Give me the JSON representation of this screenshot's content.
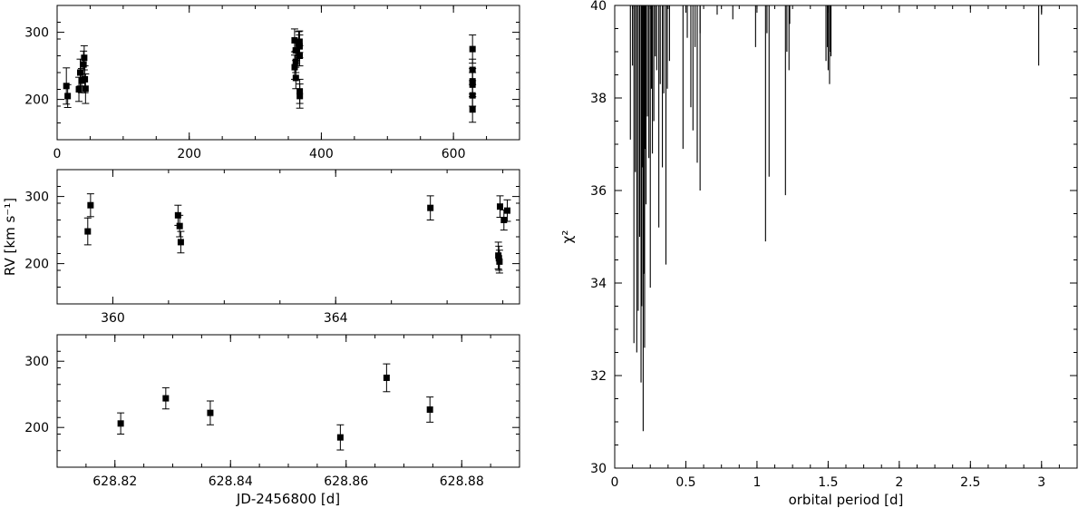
{
  "chart_data": [
    {
      "id": "rv-all",
      "type": "scatter",
      "xlabel": "",
      "ylabel": "",
      "xlim": [
        0,
        700
      ],
      "ylim": [
        140,
        340
      ],
      "xticks": [
        0,
        200,
        400,
        600
      ],
      "yticks": [
        200,
        300
      ],
      "points": [
        {
          "x": 14,
          "y": 220,
          "err": 27
        },
        {
          "x": 16,
          "y": 205,
          "err": 17
        },
        {
          "x": 33,
          "y": 215,
          "err": 18
        },
        {
          "x": 35,
          "y": 240,
          "err": 20
        },
        {
          "x": 37,
          "y": 228,
          "err": 18
        },
        {
          "x": 40,
          "y": 252,
          "err": 20
        },
        {
          "x": 41,
          "y": 262,
          "err": 18
        },
        {
          "x": 42,
          "y": 230,
          "err": 20
        },
        {
          "x": 43,
          "y": 216,
          "err": 22
        },
        {
          "x": 359.5,
          "y": 288,
          "err": 17
        },
        {
          "x": 359.6,
          "y": 248,
          "err": 18
        },
        {
          "x": 361.2,
          "y": 273,
          "err": 15
        },
        {
          "x": 361.3,
          "y": 256,
          "err": 16
        },
        {
          "x": 361.4,
          "y": 232,
          "err": 16
        },
        {
          "x": 365.8,
          "y": 283,
          "err": 18
        },
        {
          "x": 367.0,
          "y": 286,
          "err": 16
        },
        {
          "x": 367.1,
          "y": 279,
          "err": 17
        },
        {
          "x": 367.2,
          "y": 265,
          "err": 15
        },
        {
          "x": 367.3,
          "y": 212,
          "err": 18
        },
        {
          "x": 367.4,
          "y": 205,
          "err": 18
        },
        {
          "x": 628.82,
          "y": 206,
          "err": 16
        },
        {
          "x": 628.83,
          "y": 244,
          "err": 16
        },
        {
          "x": 628.84,
          "y": 222,
          "err": 18
        },
        {
          "x": 628.86,
          "y": 185,
          "err": 19
        },
        {
          "x": 628.87,
          "y": 275,
          "err": 21
        },
        {
          "x": 628.875,
          "y": 227,
          "err": 19
        }
      ]
    },
    {
      "id": "rv-zoom-360",
      "type": "scatter",
      "xlabel": "",
      "ylabel": "RV [km s⁻¹]",
      "xlim": [
        359.0,
        367.3
      ],
      "ylim": [
        140,
        340
      ],
      "xticks": [
        360,
        364
      ],
      "yticks": [
        200,
        300
      ],
      "points": [
        {
          "x": 359.55,
          "y": 248,
          "err": 20
        },
        {
          "x": 359.6,
          "y": 287,
          "err": 17
        },
        {
          "x": 361.17,
          "y": 272,
          "err": 15
        },
        {
          "x": 361.2,
          "y": 256,
          "err": 16
        },
        {
          "x": 361.22,
          "y": 232,
          "err": 16
        },
        {
          "x": 365.7,
          "y": 283,
          "err": 18
        },
        {
          "x": 366.95,
          "y": 285,
          "err": 16
        },
        {
          "x": 367.02,
          "y": 265,
          "err": 15
        },
        {
          "x": 367.08,
          "y": 279,
          "err": 16
        },
        {
          "x": 366.92,
          "y": 212,
          "err": 20
        },
        {
          "x": 366.93,
          "y": 208,
          "err": 18
        },
        {
          "x": 366.94,
          "y": 203,
          "err": 17
        }
      ]
    },
    {
      "id": "rv-zoom-628",
      "type": "scatter",
      "xlabel": "JD-2456800 [d]",
      "ylabel": "",
      "xlim": [
        628.81,
        628.89
      ],
      "ylim": [
        140,
        340
      ],
      "xticks": [
        628.82,
        628.84,
        628.86,
        628.88
      ],
      "yticks": [
        200,
        300
      ],
      "points": [
        {
          "x": 628.821,
          "y": 206,
          "err": 16
        },
        {
          "x": 628.8288,
          "y": 244,
          "err": 16
        },
        {
          "x": 628.8365,
          "y": 222,
          "err": 18
        },
        {
          "x": 628.859,
          "y": 185,
          "err": 19
        },
        {
          "x": 628.867,
          "y": 275,
          "err": 21
        },
        {
          "x": 628.8745,
          "y": 227,
          "err": 19
        }
      ]
    },
    {
      "id": "periodogram",
      "type": "line",
      "xlabel": "orbital period [d]",
      "ylabel": "χ²",
      "xlim": [
        0,
        3.25
      ],
      "ylim": [
        30,
        40
      ],
      "xticks": [
        0,
        0.5,
        1,
        1.5,
        2,
        2.5,
        3
      ],
      "xticklabels": [
        "0",
        "0.5",
        "1",
        "1.5",
        "2",
        "2.5",
        "3"
      ],
      "yticks": [
        30,
        32,
        34,
        36,
        38,
        40
      ],
      "dips": [
        [
          0.11,
          37.1
        ],
        [
          0.125,
          38.7
        ],
        [
          0.135,
          32.7
        ],
        [
          0.145,
          36.4
        ],
        [
          0.155,
          32.5
        ],
        [
          0.165,
          33.4
        ],
        [
          0.175,
          35.0
        ],
        [
          0.185,
          31.85
        ],
        [
          0.19,
          33.5
        ],
        [
          0.195,
          36.5
        ],
        [
          0.2,
          30.8
        ],
        [
          0.205,
          34.2
        ],
        [
          0.21,
          32.6
        ],
        [
          0.215,
          36.9
        ],
        [
          0.22,
          35.7
        ],
        [
          0.23,
          37.6
        ],
        [
          0.24,
          36.7
        ],
        [
          0.25,
          33.9
        ],
        [
          0.258,
          38.2
        ],
        [
          0.265,
          36.8
        ],
        [
          0.275,
          37.5
        ],
        [
          0.285,
          38.9
        ],
        [
          0.295,
          38.6
        ],
        [
          0.31,
          35.2
        ],
        [
          0.32,
          38.3
        ],
        [
          0.335,
          36.5
        ],
        [
          0.345,
          38.1
        ],
        [
          0.36,
          34.4
        ],
        [
          0.37,
          38.2
        ],
        [
          0.385,
          38.8
        ],
        [
          0.48,
          36.9
        ],
        [
          0.51,
          39.3
        ],
        [
          0.535,
          37.8
        ],
        [
          0.55,
          37.3
        ],
        [
          0.565,
          39.1
        ],
        [
          0.58,
          36.6
        ],
        [
          0.6,
          36.0
        ],
        [
          0.6,
          39.4
        ],
        [
          0.72,
          39.8
        ],
        [
          0.83,
          39.7
        ],
        [
          0.99,
          39.1
        ],
        [
          1.06,
          34.9
        ],
        [
          1.07,
          39.4
        ],
        [
          1.085,
          36.3
        ],
        [
          1.2,
          35.9
        ],
        [
          1.21,
          39.0
        ],
        [
          1.225,
          38.6
        ],
        [
          1.23,
          39.6
        ],
        [
          1.485,
          38.8
        ],
        [
          1.495,
          39.1
        ],
        [
          1.5,
          38.6
        ],
        [
          1.51,
          38.3
        ],
        [
          1.515,
          39.0
        ],
        [
          1.52,
          38.9
        ],
        [
          2.98,
          38.7
        ],
        [
          3.0,
          39.8
        ]
      ]
    }
  ]
}
